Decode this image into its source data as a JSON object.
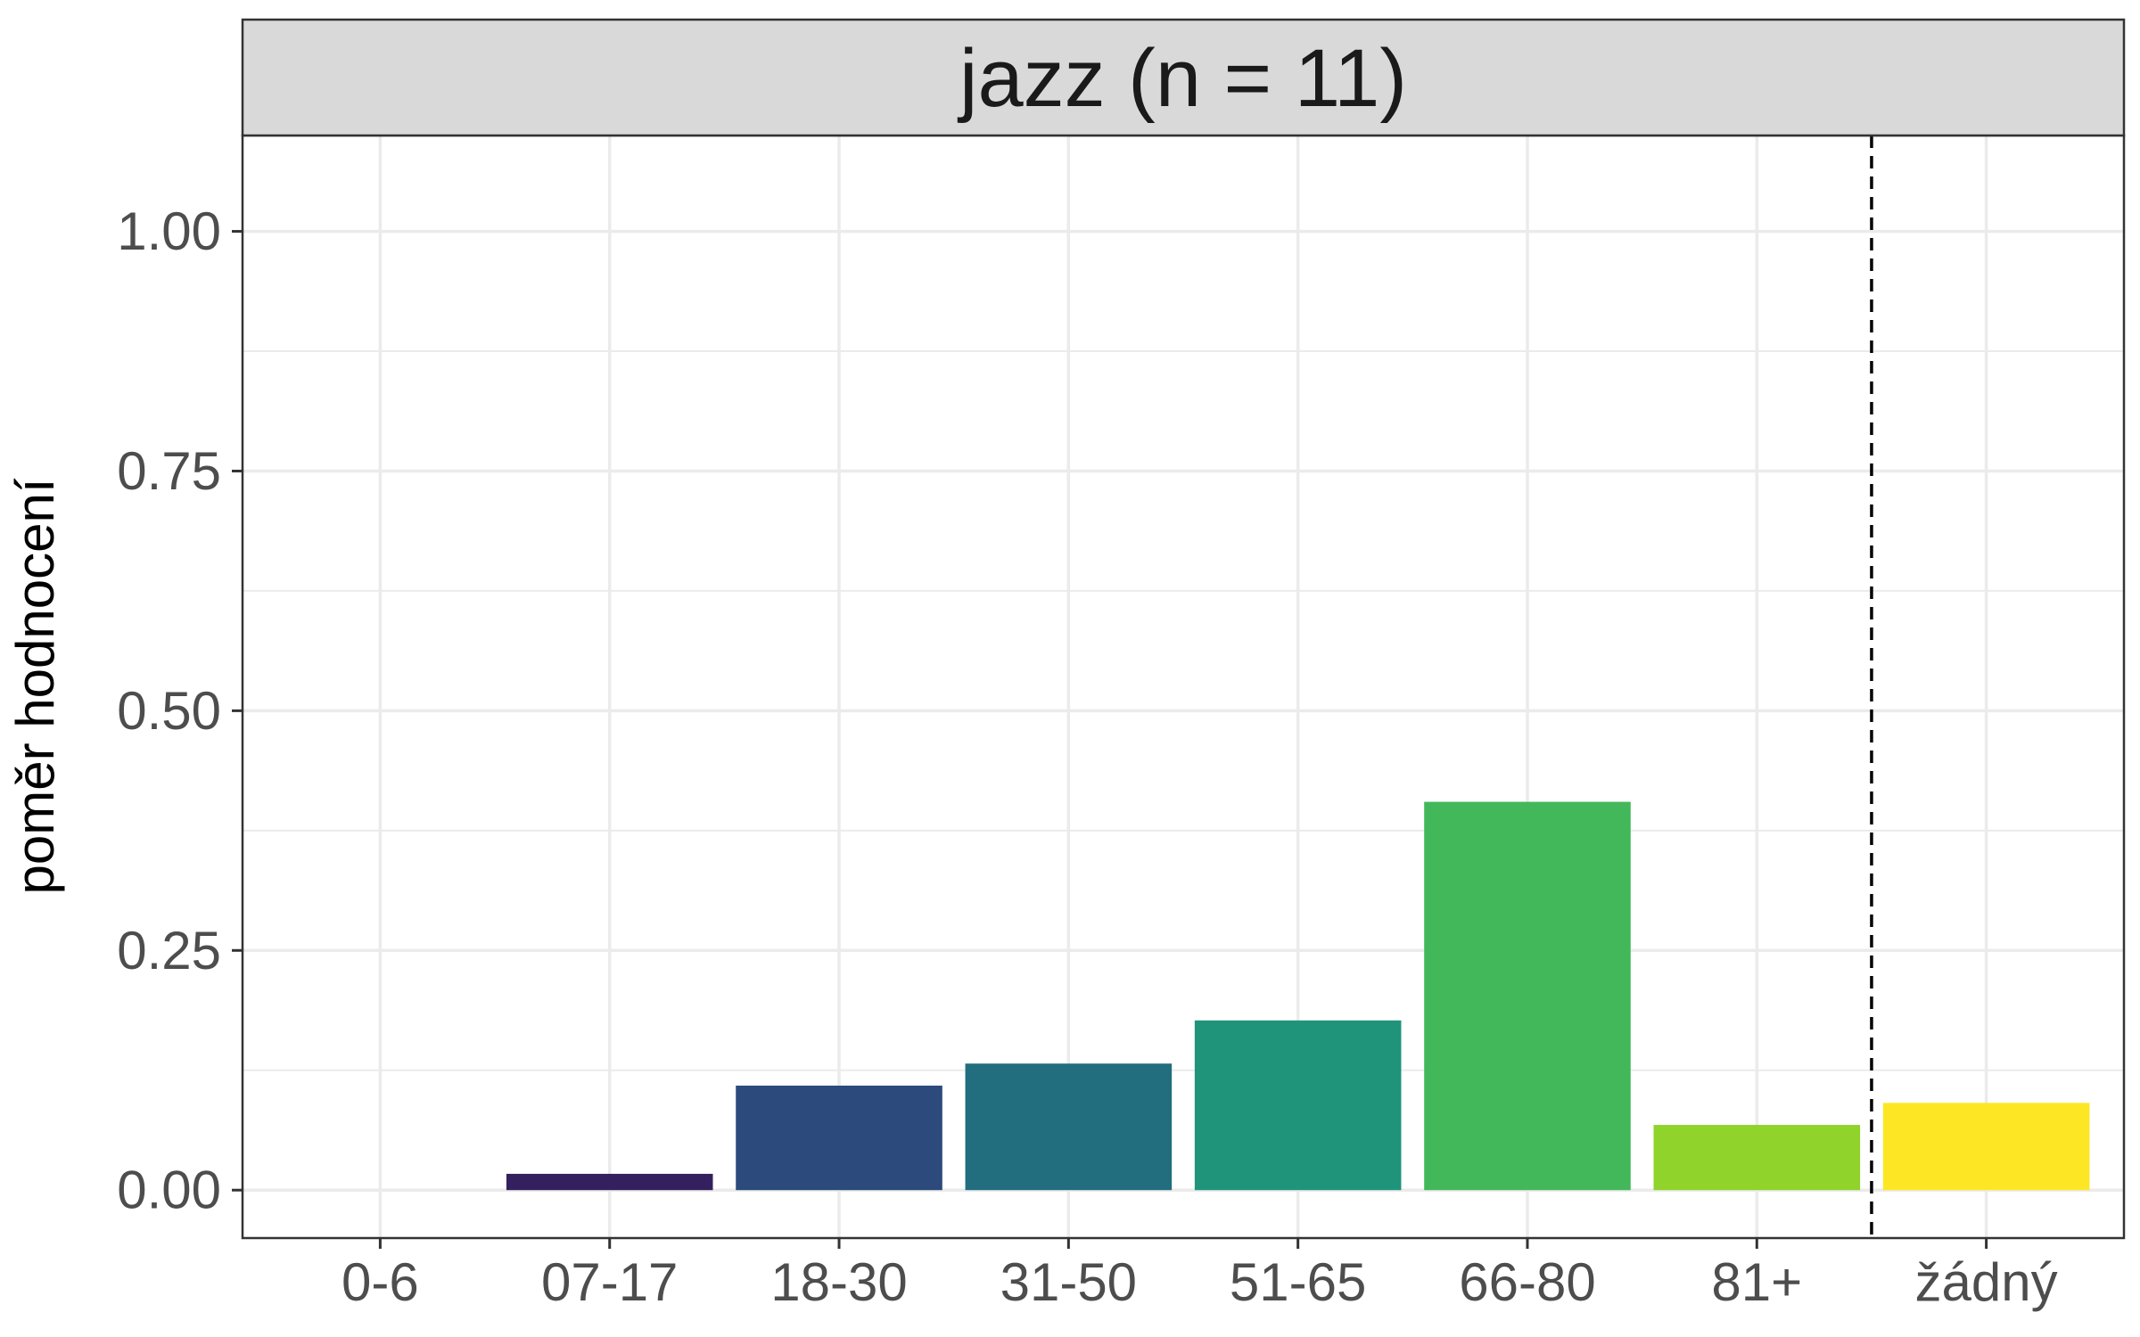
{
  "chart_data": {
    "type": "bar",
    "facet_title": "jazz (n = 11)",
    "title": "",
    "xlabel": "",
    "ylabel": "poměr hodnocení",
    "categories": [
      "0-6",
      "07-17",
      "18-30",
      "31-50",
      "51-65",
      "66-80",
      "81+",
      "žádný"
    ],
    "values": [
      0.0,
      0.017,
      0.109,
      0.132,
      0.177,
      0.405,
      0.068,
      0.091
    ],
    "colors": [
      "#440154",
      "#35205F",
      "#2C4A7C",
      "#226E7E",
      "#1F947A",
      "#42B85A",
      "#8FD32B",
      "#FDE725"
    ],
    "ylim": [
      -0.05,
      1.1
    ],
    "yticks": [
      0.0,
      0.25,
      0.5,
      0.75,
      1.0
    ],
    "ytick_labels": [
      "0.00",
      "0.25",
      "0.50",
      "0.75",
      "1.00"
    ],
    "grid": true,
    "reference_line": {
      "between": [
        "81+",
        "žádný"
      ],
      "style": "dashed"
    },
    "legend": "none"
  }
}
